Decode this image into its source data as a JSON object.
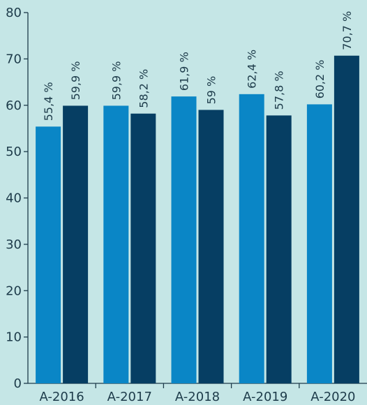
{
  "chart_data": {
    "type": "bar",
    "categories": [
      "A-2016",
      "A-2017",
      "A-2018",
      "A-2019",
      "A-2020"
    ],
    "series": [
      {
        "values": [
          55.4,
          59.9,
          61.9,
          62.4,
          60.2
        ],
        "labels": [
          "55,4 %",
          "59,9 %",
          "61,9 %",
          "62,4 %",
          "60,2 %"
        ],
        "color": "#0a86c6"
      },
      {
        "values": [
          59.9,
          58.2,
          59.0,
          57.8,
          70.7
        ],
        "labels": [
          "59,9 %",
          "58,2 %",
          "59 %",
          "57,8 %",
          "70,7 %"
        ],
        "color": "#063e63"
      }
    ],
    "ylim": [
      0,
      80
    ],
    "yticks": [
      0,
      10,
      20,
      30,
      40,
      50,
      60,
      70,
      80
    ],
    "ytick_labels": [
      "0",
      "10",
      "20",
      "30",
      "40",
      "50",
      "60",
      "70",
      "80"
    ],
    "grid": false,
    "background": "#c5e6e6",
    "axis_color": "#1d3b4a"
  }
}
